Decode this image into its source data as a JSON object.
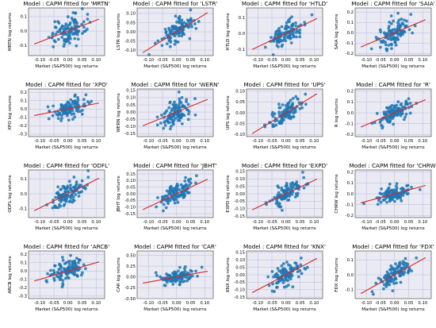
{
  "figure": {
    "xlabel": "Market (S&P500) log returns",
    "title_prefix": "Model : CAPM fitted for ",
    "colors": {
      "points": "#1f77b4",
      "fit_line": "#d62728",
      "plot_bg": "#eaeaf2",
      "grid": "#b8b8e0"
    }
  },
  "chart_data": [
    {
      "type": "scatter",
      "title": "Model : CAPM fitted for 'MRTN'",
      "ylabel": "MRTN log returns",
      "xlim": [
        -0.14,
        0.13
      ],
      "ylim": [
        -0.17,
        0.16
      ],
      "xticks": [
        -0.1,
        -0.05,
        0.0,
        0.05,
        0.1
      ],
      "yticks": [
        -0.1,
        0.0,
        0.1
      ],
      "beta": 0.75,
      "spread": 0.05,
      "n_points": 110
    },
    {
      "type": "scatter",
      "title": "Model : CAPM fitted for 'LSTR'",
      "ylabel": "LSTR log returns",
      "xlim": [
        -0.14,
        0.13
      ],
      "ylim": [
        -0.13,
        0.13
      ],
      "xticks": [
        -0.1,
        -0.05,
        0.0,
        0.05,
        0.1
      ],
      "yticks": [
        -0.1,
        -0.05,
        0.0,
        0.05,
        0.1
      ],
      "beta": 0.95,
      "spread": 0.03,
      "n_points": 110
    },
    {
      "type": "scatter",
      "title": "Model : CAPM fitted for 'HTLD'",
      "ylabel": "HTLD log returns",
      "xlim": [
        -0.14,
        0.13
      ],
      "ylim": [
        -0.14,
        0.16
      ],
      "xticks": [
        -0.1,
        -0.05,
        0.0,
        0.05,
        0.1
      ],
      "yticks": [
        -0.1,
        0.0,
        0.1
      ],
      "beta": 0.85,
      "spread": 0.035,
      "n_points": 110
    },
    {
      "type": "scatter",
      "title": "Model : CAPM fitted for 'SAIA'",
      "ylabel": "SAIA log returns",
      "xlim": [
        -0.14,
        0.13
      ],
      "ylim": [
        -0.22,
        0.24
      ],
      "xticks": [
        -0.1,
        -0.05,
        0.0,
        0.05,
        0.1
      ],
      "yticks": [
        -0.2,
        -0.1,
        0.0,
        0.1,
        0.2
      ],
      "beta": 1.15,
      "spread": 0.06,
      "n_points": 110
    },
    {
      "type": "scatter",
      "title": "Model : CAPM fitted for 'XPO'",
      "ylabel": "XPO log returns",
      "xlim": [
        -0.14,
        0.13
      ],
      "ylim": [
        -0.33,
        0.24
      ],
      "xticks": [
        -0.1,
        -0.05,
        0.0,
        0.05,
        0.1
      ],
      "yticks": [
        -0.3,
        -0.2,
        -0.1,
        0.0,
        0.1,
        0.2
      ],
      "beta": 0.65,
      "spread": 0.06,
      "n_points": 110
    },
    {
      "type": "scatter",
      "title": "Model : CAPM fitted for 'WERN'",
      "ylabel": "WERN log returns",
      "xlim": [
        -0.14,
        0.13
      ],
      "ylim": [
        -0.17,
        0.16
      ],
      "xticks": [
        -0.1,
        -0.05,
        0.0,
        0.05,
        0.1
      ],
      "yticks": [
        -0.15,
        -0.1,
        -0.05,
        0.0,
        0.05,
        0.1,
        0.15
      ],
      "beta": 0.8,
      "spread": 0.045,
      "n_points": 110
    },
    {
      "type": "scatter",
      "title": "Model : CAPM fitted for 'UPS'",
      "ylabel": "UPS log returns",
      "xlim": [
        -0.14,
        0.13
      ],
      "ylim": [
        -0.11,
        0.11
      ],
      "xticks": [
        -0.1,
        -0.05,
        0.0,
        0.05,
        0.1
      ],
      "yticks": [
        -0.1,
        -0.05,
        0.0,
        0.05,
        0.1
      ],
      "beta": 0.8,
      "spread": 0.025,
      "n_points": 110
    },
    {
      "type": "scatter",
      "title": "Model : CAPM fitted for 'R'",
      "ylabel": "R log returns",
      "xlim": [
        -0.14,
        0.13
      ],
      "ylim": [
        -0.22,
        0.22
      ],
      "xticks": [
        -0.1,
        -0.05,
        0.0,
        0.05,
        0.1
      ],
      "yticks": [
        -0.2,
        -0.1,
        0.0,
        0.1,
        0.2
      ],
      "beta": 1.1,
      "spread": 0.04,
      "n_points": 110
    },
    {
      "type": "scatter",
      "title": "Model : CAPM fitted for 'ODFL'",
      "ylabel": "ODFL log returns",
      "xlim": [
        -0.14,
        0.13
      ],
      "ylim": [
        -0.16,
        0.16
      ],
      "xticks": [
        -0.1,
        -0.05,
        0.0,
        0.05,
        0.1
      ],
      "yticks": [
        -0.1,
        0.0,
        0.1
      ],
      "beta": 0.95,
      "spread": 0.04,
      "n_points": 110
    },
    {
      "type": "scatter",
      "title": "Model : CAPM fitted for 'JBHT'",
      "ylabel": "JBHT log returns",
      "xlim": [
        -0.14,
        0.13
      ],
      "ylim": [
        -0.18,
        0.18
      ],
      "xticks": [
        -0.1,
        -0.05,
        0.0,
        0.05,
        0.1
      ],
      "yticks": [
        -0.15,
        -0.1,
        -0.05,
        0.0,
        0.05,
        0.1,
        0.15
      ],
      "beta": 1.0,
      "spread": 0.035,
      "n_points": 110
    },
    {
      "type": "scatter",
      "title": "Model : CAPM fitted for 'EXPD'",
      "ylabel": "EXPD log returns",
      "xlim": [
        -0.14,
        0.13
      ],
      "ylim": [
        -0.16,
        0.16
      ],
      "xticks": [
        -0.1,
        -0.05,
        0.0,
        0.05,
        0.1
      ],
      "yticks": [
        -0.15,
        -0.1,
        -0.05,
        0.0,
        0.05,
        0.1,
        0.15
      ],
      "beta": 0.9,
      "spread": 0.03,
      "n_points": 110
    },
    {
      "type": "scatter",
      "title": "Model : CAPM fitted for 'CHRW'",
      "ylabel": "CHRW log returns",
      "xlim": [
        -0.14,
        0.13
      ],
      "ylim": [
        -0.22,
        0.22
      ],
      "xticks": [
        -0.1,
        -0.05,
        0.0,
        0.05,
        0.1
      ],
      "yticks": [
        -0.2,
        -0.1,
        0.0,
        0.1,
        0.2
      ],
      "beta": 0.7,
      "spread": 0.035,
      "n_points": 110
    },
    {
      "type": "scatter",
      "title": "Model : CAPM fitted for 'ARCB'",
      "ylabel": "ARCB log returns",
      "xlim": [
        -0.14,
        0.13
      ],
      "ylim": [
        -0.33,
        0.24
      ],
      "xticks": [
        -0.1,
        -0.05,
        0.0,
        0.05,
        0.1
      ],
      "yticks": [
        -0.3,
        -0.2,
        -0.1,
        0.0,
        0.1,
        0.2
      ],
      "beta": 1.0,
      "spread": 0.06,
      "n_points": 110
    },
    {
      "type": "scatter",
      "title": "Model : CAPM fitted for 'CAR'",
      "ylabel": "CAR log returns",
      "xlim": [
        -0.14,
        0.13
      ],
      "ylim": [
        -0.5,
        0.6
      ],
      "xticks": [
        -0.1,
        -0.05,
        0.0,
        0.05,
        0.1
      ],
      "yticks": [
        -0.5,
        -0.25,
        0.0,
        0.25,
        0.5
      ],
      "beta": 1.2,
      "spread": 0.09,
      "n_points": 110
    },
    {
      "type": "scatter",
      "title": "Model : CAPM fitted for 'KNX'",
      "ylabel": "KNX log returns",
      "xlim": [
        -0.14,
        0.13
      ],
      "ylim": [
        -0.16,
        0.16
      ],
      "xticks": [
        -0.1,
        -0.05,
        0.0,
        0.05,
        0.1
      ],
      "yticks": [
        -0.15,
        -0.1,
        -0.05,
        0.0,
        0.05,
        0.1,
        0.15
      ],
      "beta": 1.0,
      "spread": 0.035,
      "n_points": 110
    },
    {
      "type": "scatter",
      "title": "Model : CAPM fitted for 'FDX'",
      "ylabel": "FDX log returns",
      "xlim": [
        -0.14,
        0.13
      ],
      "ylim": [
        -0.16,
        0.16
      ],
      "xticks": [
        -0.1,
        -0.05,
        0.0,
        0.05,
        0.1
      ],
      "yticks": [
        -0.1,
        0.0,
        0.1
      ],
      "beta": 1.05,
      "spread": 0.03,
      "n_points": 110
    }
  ]
}
